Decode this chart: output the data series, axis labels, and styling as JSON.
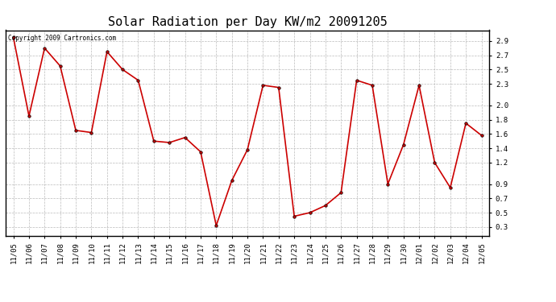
{
  "title": "Solar Radiation per Day KW/m2 20091205",
  "copyright_text": "Copyright 2009 Cartronics.com",
  "dates": [
    "11/05",
    "11/06",
    "11/07",
    "11/08",
    "11/09",
    "11/10",
    "11/11",
    "11/12",
    "11/13",
    "11/14",
    "11/15",
    "11/16",
    "11/17",
    "11/18",
    "11/19",
    "11/20",
    "11/21",
    "11/22",
    "11/23",
    "11/24",
    "11/25",
    "11/26",
    "11/27",
    "11/28",
    "11/29",
    "11/30",
    "12/01",
    "12/02",
    "12/03",
    "12/04",
    "12/05"
  ],
  "values": [
    2.95,
    1.85,
    2.8,
    2.55,
    1.65,
    1.62,
    2.75,
    2.5,
    2.35,
    1.5,
    1.48,
    1.55,
    1.35,
    0.32,
    0.95,
    1.38,
    2.28,
    2.25,
    0.45,
    0.5,
    0.6,
    0.78,
    2.35,
    2.28,
    0.9,
    1.45,
    2.28,
    1.2,
    0.85,
    1.75,
    1.58
  ],
  "line_color": "#cc0000",
  "marker_color": "#000000",
  "bg_color": "#ffffff",
  "grid_color": "#bbbbbb",
  "yticks": [
    0.3,
    0.5,
    0.7,
    0.9,
    1.2,
    1.4,
    1.6,
    1.8,
    2.0,
    2.3,
    2.5,
    2.7,
    2.9
  ],
  "ylim": [
    0.18,
    3.05
  ],
  "title_fontsize": 11,
  "tick_fontsize": 6.5,
  "copyright_fontsize": 5.5
}
